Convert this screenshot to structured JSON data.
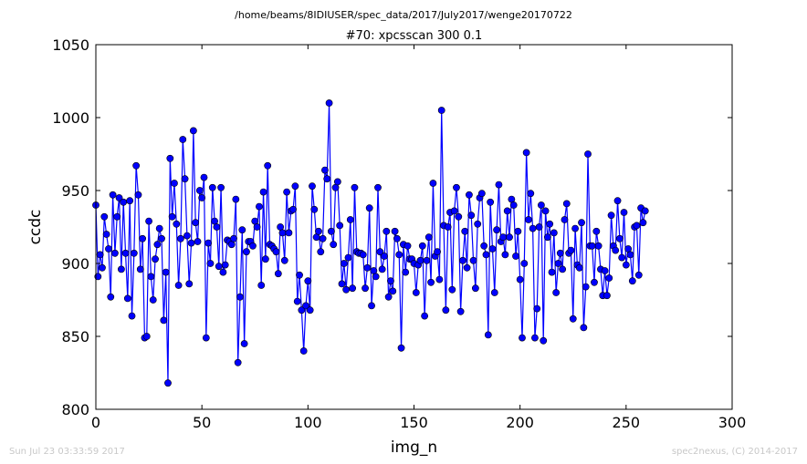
{
  "header": {
    "path": "/home/beams/8IDIUSER/spec_data/2017/July2017/wenge20170722"
  },
  "footer": {
    "timestamp": "Sun Jul 23 03:33:59 2017",
    "credit": "spec2nexus, (C) 2014-2017"
  },
  "chart_data": {
    "type": "line",
    "title": "#70: xpcsscan 300 0.1",
    "xlabel": "img_n",
    "ylabel": "ccdc",
    "xlim": [
      0,
      300
    ],
    "ylim": [
      800,
      1050
    ],
    "xticks": [
      0,
      50,
      100,
      150,
      200,
      250,
      300
    ],
    "yticks": [
      800,
      850,
      900,
      950,
      1000,
      1050
    ],
    "grid": false,
    "series_color": "#0000ff",
    "marker": "circle",
    "series": [
      {
        "values": [
          940,
          891,
          906,
          897,
          932,
          920,
          910,
          877,
          947,
          907,
          932,
          945,
          896,
          942,
          907,
          876,
          943,
          864,
          907,
          967,
          947,
          896,
          917,
          849,
          850,
          929,
          891,
          875,
          903,
          913,
          924,
          917,
          861,
          894,
          818,
          972,
          932,
          955,
          927,
          885,
          917,
          985,
          958,
          919,
          886,
          914,
          991,
          928,
          915,
          950,
          945,
          959,
          849,
          914,
          900,
          952,
          929,
          925,
          898,
          952,
          894,
          899,
          916,
          915,
          913,
          917,
          944,
          832,
          877,
          923,
          845,
          908,
          915,
          915,
          912,
          929,
          925,
          939,
          885,
          949,
          903,
          967,
          913,
          912,
          910,
          908,
          893,
          925,
          921,
          902,
          949,
          921,
          936,
          937,
          953,
          874,
          892,
          868,
          840,
          871,
          888,
          868,
          953,
          937,
          918,
          922,
          908,
          917,
          964,
          958,
          1010,
          922,
          913,
          952,
          956,
          926,
          886,
          900,
          882,
          904,
          930,
          883,
          952,
          908,
          907,
          907,
          906,
          883,
          897,
          938,
          871,
          895,
          891,
          952,
          908,
          896,
          905,
          922,
          877,
          888,
          881,
          922,
          917,
          906,
          842,
          913,
          894,
          912,
          903,
          903,
          900,
          880,
          899,
          902,
          912,
          864,
          902,
          918,
          887,
          955,
          905,
          908,
          889,
          1005,
          926,
          868,
          925,
          935,
          882,
          936,
          952,
          932,
          867,
          902,
          922,
          897,
          947,
          933,
          902,
          883,
          927,
          945,
          948,
          912,
          906,
          851,
          942,
          910,
          880,
          923,
          954,
          915,
          918,
          906,
          936,
          918,
          944,
          940,
          905,
          922,
          889,
          849,
          900,
          976,
          930,
          948,
          924,
          849,
          869,
          925,
          940,
          847,
          936,
          918,
          927,
          894,
          921,
          880,
          900,
          907,
          896,
          930,
          941,
          907,
          909,
          862,
          924,
          899,
          897,
          928,
          856,
          884,
          975,
          912,
          912,
          887,
          922,
          912,
          896,
          878,
          895,
          878,
          890,
          933,
          912,
          909,
          943,
          917,
          904,
          935,
          899,
          910,
          906,
          888,
          925,
          926,
          892,
          938,
          928,
          936
        ]
      }
    ]
  }
}
